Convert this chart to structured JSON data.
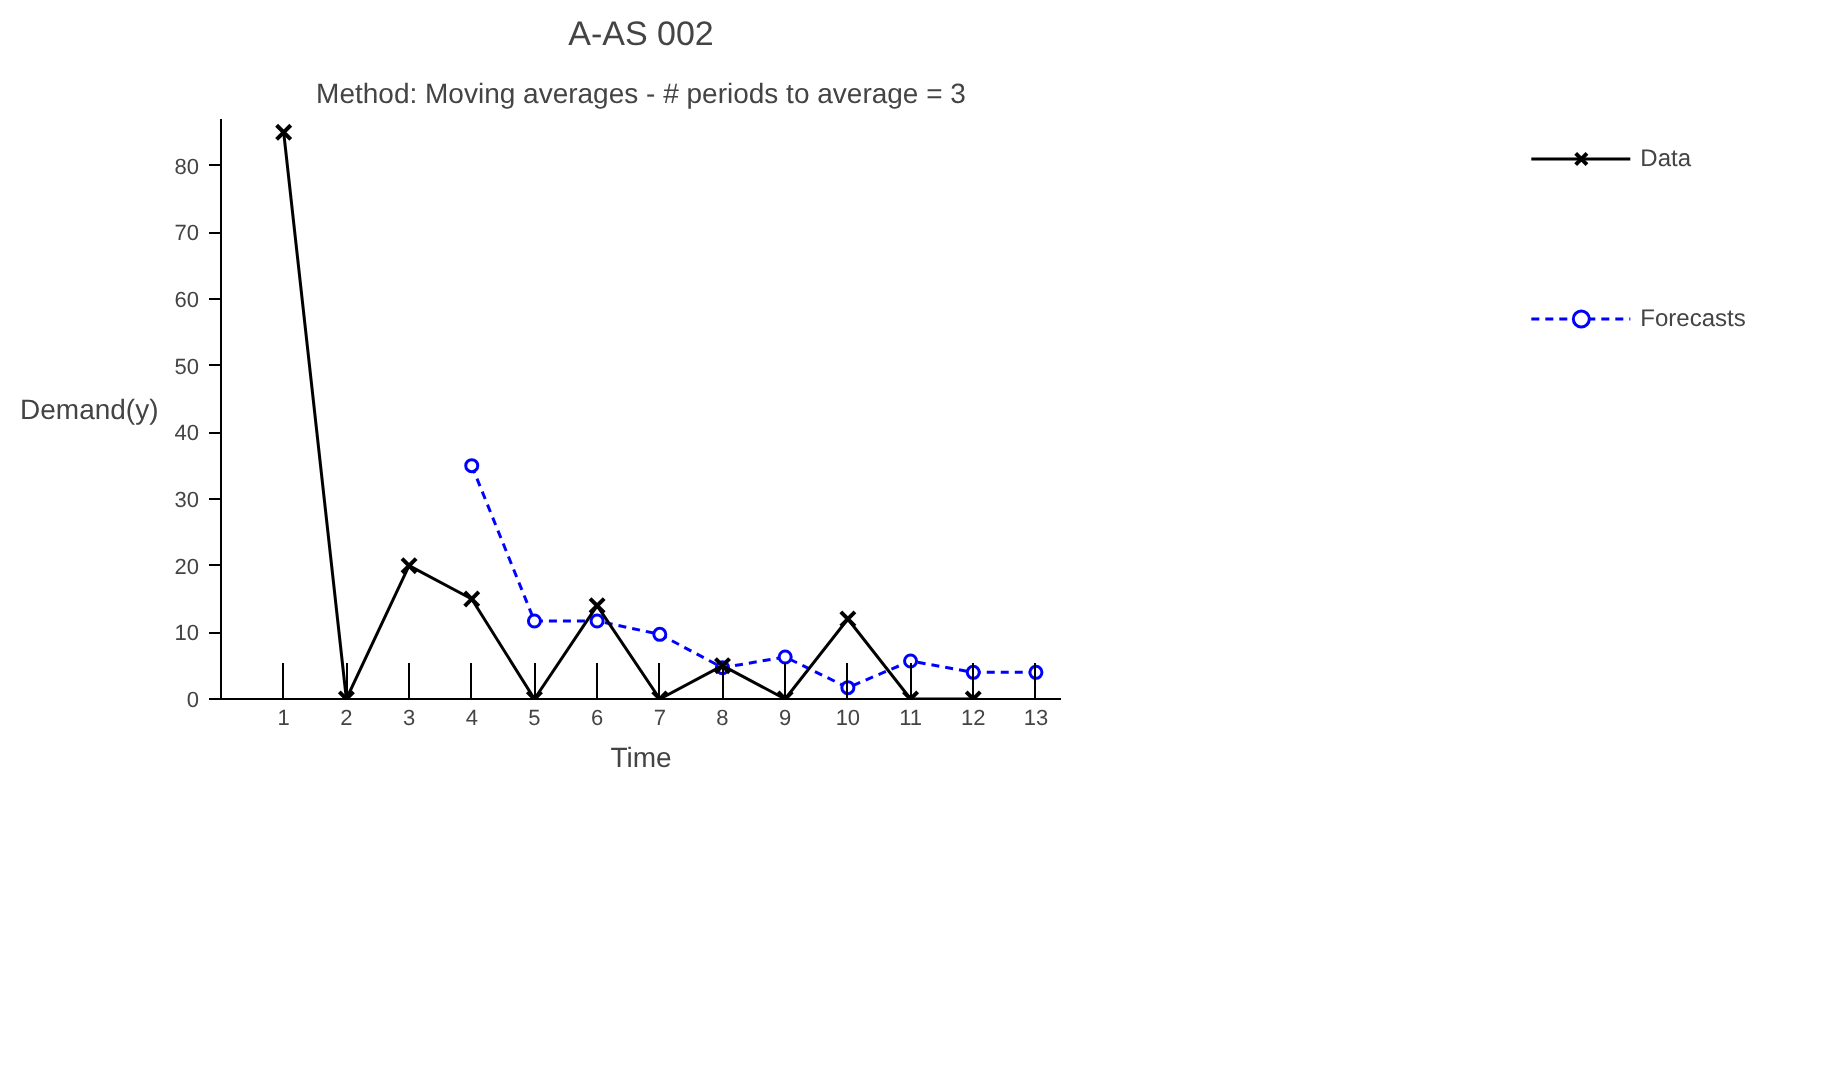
{
  "chart_data": {
    "type": "line",
    "title": "A-AS 002",
    "subtitle": "Method: Moving averages - # periods to average = 3",
    "xlabel": "Time",
    "ylabel": "Demand(y)",
    "xlim": [
      0,
      13.4
    ],
    "ylim": [
      0,
      87
    ],
    "xticks": [
      1,
      2,
      3,
      4,
      5,
      6,
      7,
      8,
      9,
      10,
      11,
      12,
      13
    ],
    "yticks": [
      0,
      10,
      20,
      30,
      40,
      50,
      60,
      70,
      80
    ],
    "grid": false,
    "legend": "right",
    "series": [
      {
        "name": "Data",
        "color": "#000000",
        "marker": "cross",
        "line_style": "solid",
        "x": [
          1,
          2,
          3,
          4,
          5,
          6,
          7,
          8,
          9,
          10,
          11,
          12
        ],
        "values": [
          85,
          0,
          20,
          15,
          0,
          14,
          0,
          5,
          0,
          12,
          0,
          0
        ]
      },
      {
        "name": "Forecasts",
        "color": "#0000ff",
        "marker": "circle",
        "line_style": "dashed",
        "x": [
          4,
          5,
          6,
          7,
          8,
          9,
          10,
          11,
          12,
          13
        ],
        "values": [
          35,
          11.7,
          11.7,
          9.7,
          4.7,
          6.3,
          1.7,
          5.7,
          4,
          4
        ]
      }
    ]
  }
}
